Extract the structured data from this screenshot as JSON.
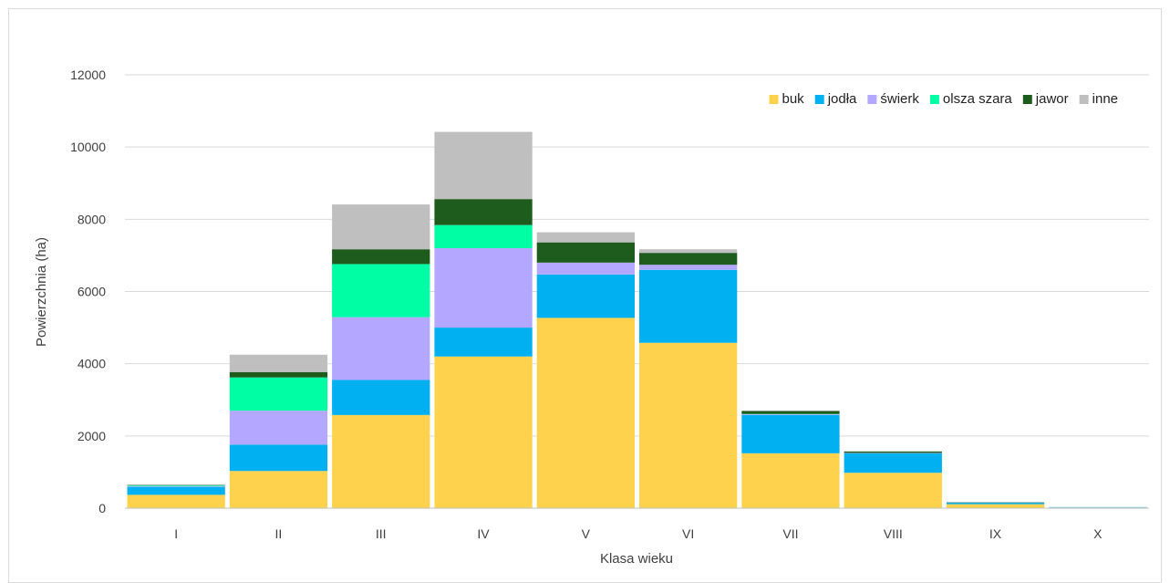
{
  "chart_data": {
    "type": "bar",
    "stacked": true,
    "title": "",
    "xlabel": "Klasa wieku",
    "ylabel": "Powierzchnia (ha)",
    "ylim": [
      0,
      12000
    ],
    "yticks": [
      0,
      2000,
      4000,
      6000,
      8000,
      10000,
      12000
    ],
    "grid": true,
    "legend_position": "top-right",
    "categories": [
      "I",
      "II",
      "III",
      "IV",
      "V",
      "VI",
      "VII",
      "VIII",
      "IX",
      "X"
    ],
    "series": [
      {
        "name": "buk",
        "color": "#FFD24D",
        "values": [
          370,
          1030,
          2580,
          4200,
          5270,
          4580,
          1520,
          980,
          110,
          20
        ]
      },
      {
        "name": "jodła",
        "color": "#00B0F0",
        "values": [
          220,
          730,
          970,
          800,
          1200,
          2020,
          1060,
          540,
          40,
          10
        ]
      },
      {
        "name": "świerk",
        "color": "#B4A7FF",
        "values": [
          20,
          940,
          1740,
          2200,
          330,
          140,
          20,
          10,
          0,
          0
        ]
      },
      {
        "name": "olsza szara",
        "color": "#00FFA5",
        "values": [
          20,
          920,
          1470,
          640,
          0,
          0,
          10,
          0,
          0,
          0
        ]
      },
      {
        "name": "jawor",
        "color": "#1E5C1E",
        "values": [
          10,
          150,
          410,
          720,
          560,
          330,
          80,
          40,
          10,
          0
        ]
      },
      {
        "name": "inne",
        "color": "#BFBFBF",
        "values": [
          20,
          480,
          1240,
          1860,
          280,
          100,
          10,
          10,
          10,
          0
        ]
      }
    ]
  }
}
